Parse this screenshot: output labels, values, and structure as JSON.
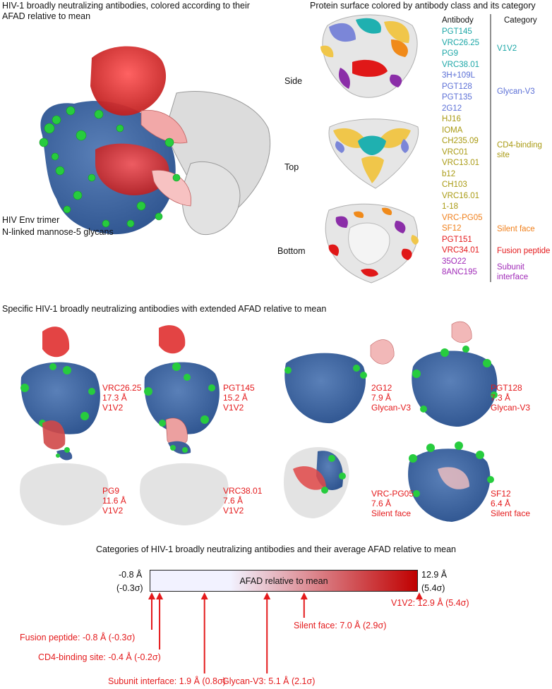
{
  "panel_a": {
    "title": "HIV-1 broadly neutralizing antibodies, colored according to their AFAD relative to mean",
    "legend": [
      {
        "text": "HIV Env trimer",
        "color": "#2c4a86"
      },
      {
        "text": "N-linked mannose-5 glycans",
        "color": "#1fb83b"
      }
    ]
  },
  "panel_b": {
    "title": "Protein surface colored by antibody class and its category",
    "views": [
      "Side",
      "Top",
      "Bottom"
    ],
    "col_antibody": "Antibody",
    "col_category": "Category",
    "antibodies": [
      {
        "name": "PGT145",
        "color": "#1aa6a6"
      },
      {
        "name": "VRC26.25",
        "color": "#1aa6a6"
      },
      {
        "name": "PG9",
        "color": "#1aa6a6"
      },
      {
        "name": "VRC38.01",
        "color": "#1aa6a6"
      },
      {
        "name": "3H+109L",
        "color": "#5b6fd6"
      },
      {
        "name": "PGT128",
        "color": "#5b6fd6"
      },
      {
        "name": "PGT135",
        "color": "#5b6fd6"
      },
      {
        "name": "2G12",
        "color": "#5b6fd6"
      },
      {
        "name": "HJ16",
        "color": "#a99a12"
      },
      {
        "name": "IOMA",
        "color": "#a99a12"
      },
      {
        "name": "CH235.09",
        "color": "#a99a12"
      },
      {
        "name": "VRC01",
        "color": "#a99a12"
      },
      {
        "name": "VRC13.01",
        "color": "#a99a12"
      },
      {
        "name": "b12",
        "color": "#a99a12"
      },
      {
        "name": "CH103",
        "color": "#a99a12"
      },
      {
        "name": "VRC16.01",
        "color": "#a99a12"
      },
      {
        "name": "1-18",
        "color": "#a99a12"
      },
      {
        "name": "VRC-PG05",
        "color": "#f07f1a"
      },
      {
        "name": "SF12",
        "color": "#f07f1a"
      },
      {
        "name": "PGT151",
        "color": "#e41a1c"
      },
      {
        "name": "VRC34.01",
        "color": "#e41a1c"
      },
      {
        "name": "35O22",
        "color": "#a02ab8"
      },
      {
        "name": "8ANC195",
        "color": "#a02ab8"
      }
    ],
    "categories": [
      {
        "line1": "V1V2",
        "line2": "",
        "color": "#1aa6a6"
      },
      {
        "line1": "Glycan-V3",
        "line2": "",
        "color": "#5b6fd6"
      },
      {
        "line1": "CD4-binding",
        "line2": "site",
        "color": "#a99a12"
      },
      {
        "line1": "Silent face",
        "line2": "",
        "color": "#f07f1a"
      },
      {
        "line1": "Fusion peptide",
        "line2": "",
        "color": "#e41a1c"
      },
      {
        "line1": "Subunit",
        "line2": "interface",
        "color": "#a02ab8"
      }
    ]
  },
  "panel_c": {
    "title": "Specific HIV-1 broadly neutralizing antibodies with extended AFAD relative to mean",
    "items": [
      {
        "name": "VRC26.25",
        "value": "17.3 Å",
        "category": "V1V2"
      },
      {
        "name": "PGT145",
        "value": "15.2 Å",
        "category": "V1V2"
      },
      {
        "name": "2G12",
        "value": "7.9 Å",
        "category": "Glycan-V3"
      },
      {
        "name": "PGT128",
        "value": "7.3 Å",
        "category": "Glycan-V3"
      },
      {
        "name": "PG9",
        "value": "11.6 Å",
        "category": "V1V2"
      },
      {
        "name": "VRC38.01",
        "value": "7.6 Å",
        "category": "V1V2"
      },
      {
        "name": "VRC-PG05",
        "value": "7.6 Å",
        "category": "Silent face"
      },
      {
        "name": "SF12",
        "value": "6.4 Å",
        "category": "Silent face"
      }
    ]
  },
  "panel_d": {
    "title": "Categories of HIV-1 broadly neutralizing antibodies and their average AFAD relative to mean",
    "bar_label": "AFAD relative to mean",
    "left_value": "-0.8 Å",
    "left_sigma": "(-0.3σ)",
    "right_value": "12.9 Å",
    "right_sigma": "(5.4σ)",
    "color_low": "#f2f2ff",
    "color_high": "#c00000",
    "min": -0.8,
    "max": 12.9,
    "markers": [
      {
        "value": -0.8,
        "text": "Fusion peptide: -0.8 Å (-0.3σ)"
      },
      {
        "value": -0.4,
        "text": "CD4-binding site: -0.4 Å (-0.2σ)"
      },
      {
        "value": 1.9,
        "text": "Subunit interface: 1.9 Å (0.8σ)"
      },
      {
        "value": 5.1,
        "text": "Glycan-V3: 5.1 Å (2.1σ)"
      },
      {
        "value": 7.0,
        "text": "Silent face: 7.0 Å (2.9σ)"
      },
      {
        "value": 12.9,
        "text": "V1V2: 12.9 Å (5.4σ)"
      }
    ]
  }
}
